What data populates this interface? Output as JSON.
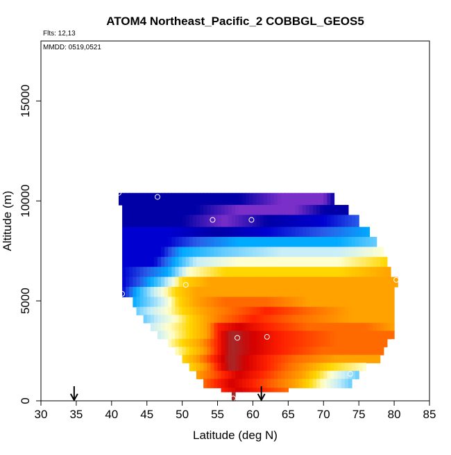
{
  "header": {
    "title": "ATOM4 Northeast_Pacific_2 COBBGL_GEOS5",
    "flights": "Flts: 12,13",
    "dates": "MMDD: 0519,0521"
  },
  "chart_data": {
    "type": "heatmap",
    "title": "ATOM4 Northeast_Pacific_2 COBBGL_GEOS5",
    "xlabel": "Latitude (deg N)",
    "ylabel": "Altitude (m)",
    "xlim": [
      30,
      85
    ],
    "ylim": [
      0,
      18000
    ],
    "xticks": [
      30,
      35,
      40,
      45,
      50,
      55,
      60,
      65,
      70,
      75,
      80,
      85
    ],
    "yticks": [
      0,
      5000,
      10000,
      15000
    ],
    "grid": false,
    "palette": [
      "#7a2fc8",
      "#0000a6",
      "#0000d0",
      "#2a5ce8",
      "#00aaff",
      "#66ccff",
      "#c8eef8",
      "#ffffd0",
      "#ffd700",
      "#ffa200",
      "#ff6a00",
      "#ff2000",
      "#d40000",
      "#a52a2a"
    ],
    "layers": [
      {
        "alt_lo": 9800,
        "alt_hi": 10400,
        "lat_start": 41,
        "lat_end": 71.5,
        "pal_stops": [
          [
            41,
            1
          ],
          [
            58,
            1
          ],
          [
            64,
            0
          ],
          [
            70,
            0
          ],
          [
            71.5,
            1
          ]
        ]
      },
      {
        "alt_lo": 9300,
        "alt_hi": 9800,
        "lat_start": 41.5,
        "lat_end": 73.5,
        "pal_stops": [
          [
            41.5,
            1
          ],
          [
            52,
            1
          ],
          [
            58,
            0
          ],
          [
            66,
            0
          ],
          [
            70,
            1
          ],
          [
            73.5,
            1
          ]
        ]
      },
      {
        "alt_lo": 8700,
        "alt_hi": 9300,
        "lat_start": 41.5,
        "lat_end": 75,
        "pal_stops": [
          [
            41.5,
            1
          ],
          [
            50,
            1
          ],
          [
            56,
            0
          ],
          [
            62,
            1
          ],
          [
            70,
            2
          ],
          [
            75,
            3
          ]
        ]
      },
      {
        "alt_lo": 8200,
        "alt_hi": 8700,
        "lat_start": 41.5,
        "lat_end": 76.5,
        "pal_stops": [
          [
            41.5,
            2
          ],
          [
            48,
            2
          ],
          [
            55,
            1
          ],
          [
            62,
            2
          ],
          [
            70,
            3
          ],
          [
            76.5,
            4
          ]
        ]
      },
      {
        "alt_lo": 7700,
        "alt_hi": 8200,
        "lat_start": 41.5,
        "lat_end": 77.5,
        "pal_stops": [
          [
            41.5,
            2
          ],
          [
            48,
            2
          ],
          [
            52,
            3
          ],
          [
            58,
            4
          ],
          [
            66,
            4
          ],
          [
            72,
            4
          ],
          [
            77.5,
            5
          ]
        ]
      },
      {
        "alt_lo": 7200,
        "alt_hi": 7700,
        "lat_start": 41.5,
        "lat_end": 78.5,
        "pal_stops": [
          [
            41.5,
            2
          ],
          [
            47,
            2
          ],
          [
            50,
            4
          ],
          [
            56,
            5
          ],
          [
            64,
            6
          ],
          [
            72,
            6
          ],
          [
            78.5,
            7
          ]
        ]
      },
      {
        "alt_lo": 6700,
        "alt_hi": 7200,
        "lat_start": 41.5,
        "lat_end": 79,
        "pal_stops": [
          [
            41.5,
            2
          ],
          [
            46,
            2
          ],
          [
            49,
            4
          ],
          [
            52,
            6
          ],
          [
            58,
            7
          ],
          [
            66,
            7
          ],
          [
            72,
            7
          ],
          [
            79,
            8
          ]
        ]
      },
      {
        "alt_lo": 6200,
        "alt_hi": 6700,
        "lat_start": 41.5,
        "lat_end": 79.5,
        "pal_stops": [
          [
            41.5,
            2
          ],
          [
            45,
            3
          ],
          [
            48,
            4
          ],
          [
            51,
            7
          ],
          [
            56,
            8
          ],
          [
            64,
            8
          ],
          [
            72,
            8
          ],
          [
            79.5,
            9
          ]
        ]
      },
      {
        "alt_lo": 5700,
        "alt_hi": 6200,
        "lat_start": 41.5,
        "lat_end": 80.5,
        "pal_stops": [
          [
            41.5,
            2
          ],
          [
            44,
            3
          ],
          [
            47,
            5
          ],
          [
            50,
            8
          ],
          [
            54,
            9
          ],
          [
            62,
            9
          ],
          [
            70,
            9
          ],
          [
            80.5,
            9
          ]
        ]
      },
      {
        "alt_lo": 5200,
        "alt_hi": 5700,
        "lat_start": 41.5,
        "lat_end": 80,
        "pal_stops": [
          [
            41.5,
            2
          ],
          [
            43.5,
            4
          ],
          [
            46,
            6
          ],
          [
            49,
            8
          ],
          [
            52,
            9
          ],
          [
            58,
            9
          ],
          [
            64,
            9
          ],
          [
            80,
            9
          ]
        ]
      },
      {
        "alt_lo": 4700,
        "alt_hi": 5200,
        "lat_start": 43,
        "lat_end": 80,
        "pal_stops": [
          [
            43,
            4
          ],
          [
            45,
            5
          ],
          [
            47,
            6
          ],
          [
            49.5,
            8
          ],
          [
            52,
            9
          ],
          [
            56,
            10
          ],
          [
            62,
            10
          ],
          [
            68,
            9
          ],
          [
            80,
            9
          ]
        ]
      },
      {
        "alt_lo": 4300,
        "alt_hi": 4700,
        "lat_start": 43.5,
        "lat_end": 80,
        "pal_stops": [
          [
            43.5,
            5
          ],
          [
            45.5,
            6
          ],
          [
            48,
            7
          ],
          [
            50,
            8
          ],
          [
            53,
            9
          ],
          [
            57,
            10
          ],
          [
            62,
            11
          ],
          [
            68,
            10
          ],
          [
            74,
            9
          ],
          [
            80,
            9
          ]
        ]
      },
      {
        "alt_lo": 3900,
        "alt_hi": 4300,
        "lat_start": 44.5,
        "lat_end": 80,
        "pal_stops": [
          [
            44.5,
            5
          ],
          [
            46.5,
            6
          ],
          [
            49,
            7
          ],
          [
            51,
            8
          ],
          [
            53.5,
            9
          ],
          [
            56,
            10
          ],
          [
            60,
            11
          ],
          [
            66,
            10
          ],
          [
            74,
            9
          ],
          [
            80,
            9
          ]
        ]
      },
      {
        "alt_lo": 3500,
        "alt_hi": 3900,
        "lat_start": 45.5,
        "lat_end": 80,
        "pal_stops": [
          [
            45.5,
            6
          ],
          [
            48,
            7
          ],
          [
            51,
            8
          ],
          [
            53.5,
            9
          ],
          [
            55,
            11
          ],
          [
            58,
            12
          ],
          [
            62,
            11
          ],
          [
            68,
            10
          ],
          [
            76,
            10
          ],
          [
            80,
            9
          ]
        ]
      },
      {
        "alt_lo": 3100,
        "alt_hi": 3500,
        "lat_start": 46.5,
        "lat_end": 80,
        "pal_stops": [
          [
            46.5,
            6
          ],
          [
            48.5,
            7
          ],
          [
            51,
            8
          ],
          [
            53.5,
            9
          ],
          [
            55,
            11
          ],
          [
            57,
            13
          ],
          [
            60,
            12
          ],
          [
            64,
            11
          ],
          [
            72,
            10
          ],
          [
            80,
            10
          ]
        ]
      },
      {
        "alt_lo": 2700,
        "alt_hi": 3100,
        "lat_start": 48,
        "lat_end": 79,
        "pal_stops": [
          [
            48,
            7
          ],
          [
            50,
            8
          ],
          [
            52.5,
            9
          ],
          [
            55,
            11
          ],
          [
            57,
            13
          ],
          [
            60,
            12
          ],
          [
            64,
            11
          ],
          [
            72,
            10
          ],
          [
            79,
            10
          ]
        ]
      },
      {
        "alt_lo": 2300,
        "alt_hi": 2700,
        "lat_start": 49,
        "lat_end": 78.5,
        "pal_stops": [
          [
            49,
            7
          ],
          [
            51,
            8
          ],
          [
            53,
            9
          ],
          [
            55,
            11
          ],
          [
            57,
            13
          ],
          [
            60,
            12
          ],
          [
            64,
            11
          ],
          [
            70,
            10
          ],
          [
            78.5,
            10
          ]
        ]
      },
      {
        "alt_lo": 1900,
        "alt_hi": 2300,
        "lat_start": 50,
        "lat_end": 78,
        "pal_stops": [
          [
            50,
            8
          ],
          [
            52,
            9
          ],
          [
            54.5,
            11
          ],
          [
            57,
            13
          ],
          [
            59,
            12
          ],
          [
            62,
            11
          ],
          [
            66,
            10
          ],
          [
            72,
            9
          ],
          [
            78,
            9
          ]
        ]
      },
      {
        "alt_lo": 1500,
        "alt_hi": 1900,
        "lat_start": 51,
        "lat_end": 76,
        "pal_stops": [
          [
            51,
            8
          ],
          [
            53,
            9
          ],
          [
            55,
            11
          ],
          [
            57,
            13
          ],
          [
            59,
            12
          ],
          [
            62,
            11
          ],
          [
            65,
            10
          ],
          [
            68,
            9
          ],
          [
            71,
            8
          ],
          [
            76,
            7
          ]
        ]
      },
      {
        "alt_lo": 1100,
        "alt_hi": 1500,
        "lat_start": 52,
        "lat_end": 75,
        "pal_stops": [
          [
            52,
            9
          ],
          [
            54,
            10
          ],
          [
            56,
            11
          ],
          [
            58,
            12
          ],
          [
            61,
            11
          ],
          [
            64,
            10
          ],
          [
            67,
            9
          ],
          [
            69,
            8
          ],
          [
            71,
            7
          ],
          [
            73,
            6
          ],
          [
            75,
            5
          ]
        ]
      },
      {
        "alt_lo": 650,
        "alt_hi": 1100,
        "lat_start": 53,
        "lat_end": 74,
        "pal_stops": [
          [
            53,
            10
          ],
          [
            55,
            11
          ],
          [
            57,
            12
          ],
          [
            60,
            11
          ],
          [
            63,
            10
          ],
          [
            66,
            9
          ],
          [
            68,
            8
          ],
          [
            70,
            7
          ],
          [
            72,
            6
          ],
          [
            74,
            5
          ]
        ]
      },
      {
        "alt_lo": 450,
        "alt_hi": 650,
        "lat_start": 55.5,
        "lat_end": 65,
        "pal_stops": [
          [
            55.5,
            11
          ],
          [
            58,
            12
          ],
          [
            61,
            11
          ],
          [
            65,
            10
          ]
        ]
      },
      {
        "alt_lo": 0,
        "alt_hi": 450,
        "lat_start": 57,
        "lat_end": 57.5,
        "pal_stops": [
          [
            57,
            13
          ],
          [
            57.5,
            13
          ]
        ]
      }
    ],
    "sample_points": [
      {
        "lat": 41,
        "alt": 10400
      },
      {
        "lat": 46.5,
        "alt": 10200
      },
      {
        "lat": 69.8,
        "alt": 10700
      },
      {
        "lat": 54.3,
        "alt": 9050
      },
      {
        "lat": 59.8,
        "alt": 9050
      },
      {
        "lat": 76.8,
        "alt": 8850
      },
      {
        "lat": 80.3,
        "alt": 6050
      },
      {
        "lat": 50.5,
        "alt": 5800
      },
      {
        "lat": 41.5,
        "alt": 5350
      },
      {
        "lat": 57.8,
        "alt": 3150
      },
      {
        "lat": 62,
        "alt": 3200
      },
      {
        "lat": 79.8,
        "alt": 2950
      },
      {
        "lat": 73.8,
        "alt": 1350
      },
      {
        "lat": 57.2,
        "alt": 120
      }
    ],
    "arrows": [
      {
        "lat": 34.7
      },
      {
        "lat": 61.2
      }
    ]
  }
}
